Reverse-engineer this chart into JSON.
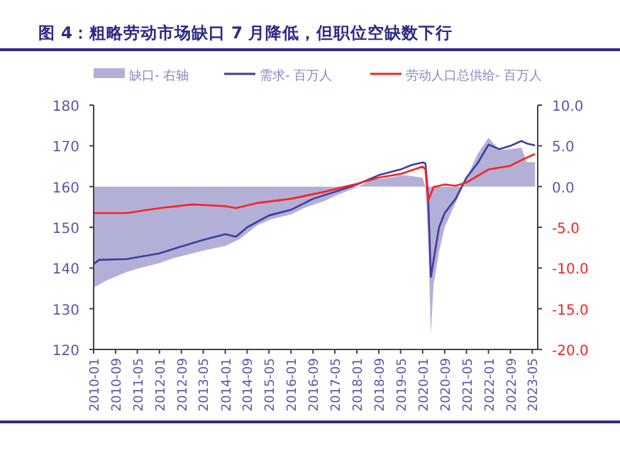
{
  "chart_data": {
    "type": "line",
    "title": "图 4：粗略劳动市场缺口 7 月降低，但职位空缺数下行",
    "legend": "top",
    "grid": false,
    "xlim": [
      "2010-01",
      "2023-07"
    ],
    "xticks": [
      "2010-01",
      "2010-09",
      "2011-05",
      "2012-01",
      "2012-09",
      "2013-05",
      "2014-01",
      "2014-09",
      "2015-05",
      "2016-01",
      "2016-09",
      "2017-05",
      "2018-01",
      "2018-09",
      "2019-05",
      "2020-01",
      "2020-09",
      "2021-05",
      "2022-01",
      "2022-09",
      "2023-05"
    ],
    "ylim": [
      120,
      180
    ],
    "yticks": [
      120,
      130,
      140,
      150,
      160,
      170,
      180
    ],
    "y2lim": [
      -20,
      10
    ],
    "y2ticks": [
      {
        "value": -20,
        "label": "-20.0"
      },
      {
        "value": -15,
        "label": "-15.0"
      },
      {
        "value": -10,
        "label": "-10.0"
      },
      {
        "value": -5,
        "label": "-5.0"
      },
      {
        "value": 0,
        "label": "0.0"
      },
      {
        "value": 5,
        "label": "5.0"
      },
      {
        "value": 10,
        "label": "10.0"
      }
    ],
    "series": [
      {
        "name": "缺口- 右轴",
        "type": "area",
        "axis": "y2",
        "color": "#b3b0d8",
        "x": [
          "2010-01",
          "2010-06",
          "2011-01",
          "2011-06",
          "2012-01",
          "2012-06",
          "2013-01",
          "2013-06",
          "2014-01",
          "2014-06",
          "2015-01",
          "2015-06",
          "2016-01",
          "2016-06",
          "2017-01",
          "2017-06",
          "2018-01",
          "2018-06",
          "2019-01",
          "2019-06",
          "2020-01",
          "2020-02",
          "2020-03",
          "2020-04",
          "2020-05",
          "2020-07",
          "2020-09",
          "2021-01",
          "2021-05",
          "2021-09",
          "2022-01",
          "2022-05",
          "2022-09",
          "2023-01",
          "2023-03",
          "2023-06"
        ],
        "values": [
          -12.4,
          -11.5,
          -10.5,
          -10,
          -9.4,
          -8.8,
          -8.2,
          -7.8,
          -7.3,
          -6.5,
          -4.7,
          -4,
          -3.4,
          -2.6,
          -1.8,
          -1,
          -0.1,
          0.8,
          1.1,
          1.4,
          1.1,
          0,
          -6,
          -18.1,
          -12,
          -8,
          -5,
          -2,
          1,
          4,
          6,
          4.5,
          4.6,
          4.8,
          3,
          3
        ]
      },
      {
        "name": "需求- 百万人",
        "color": "#3f3c9e",
        "x": [
          "2010-01",
          "2010-03",
          "2011-01",
          "2012-01",
          "2012-09",
          "2013-05",
          "2014-01",
          "2014-05",
          "2014-09",
          "2015-05",
          "2016-01",
          "2016-09",
          "2017-05",
          "2018-01",
          "2018-09",
          "2019-05",
          "2019-09",
          "2020-01",
          "2020-02",
          "2020-03",
          "2020-04",
          "2020-05",
          "2020-07",
          "2020-09",
          "2021-01",
          "2021-05",
          "2021-09",
          "2022-01",
          "2022-05",
          "2022-09",
          "2023-01",
          "2023-03",
          "2023-06"
        ],
        "values": [
          141,
          142,
          142.2,
          143.6,
          145.3,
          146.9,
          148.3,
          147.7,
          150,
          152.9,
          154.3,
          157,
          158.7,
          160.5,
          162.8,
          164.2,
          165.3,
          165.9,
          165.7,
          158,
          137.8,
          141.9,
          150,
          153.5,
          157,
          162.2,
          165.7,
          170.3,
          169.2,
          170,
          171.2,
          170.6,
          170.1
        ]
      },
      {
        "name": "劳动人口总供给- 百万人",
        "color": "#ff2020",
        "x": [
          "2010-01",
          "2011-01",
          "2012-01",
          "2013-01",
          "2014-01",
          "2014-05",
          "2015-01",
          "2016-01",
          "2017-01",
          "2018-01",
          "2018-09",
          "2019-05",
          "2020-01",
          "2020-02",
          "2020-03",
          "2020-05",
          "2020-09",
          "2021-01",
          "2021-05",
          "2022-01",
          "2022-09",
          "2023-01",
          "2023-06"
        ],
        "values": [
          153.5,
          153.5,
          154.7,
          155.6,
          155.2,
          154.7,
          156,
          157,
          158.7,
          160.7,
          162.2,
          163.1,
          164.9,
          164.2,
          156.4,
          159.9,
          160.5,
          160.2,
          161,
          164.2,
          165.1,
          166.5,
          168
        ]
      }
    ]
  }
}
